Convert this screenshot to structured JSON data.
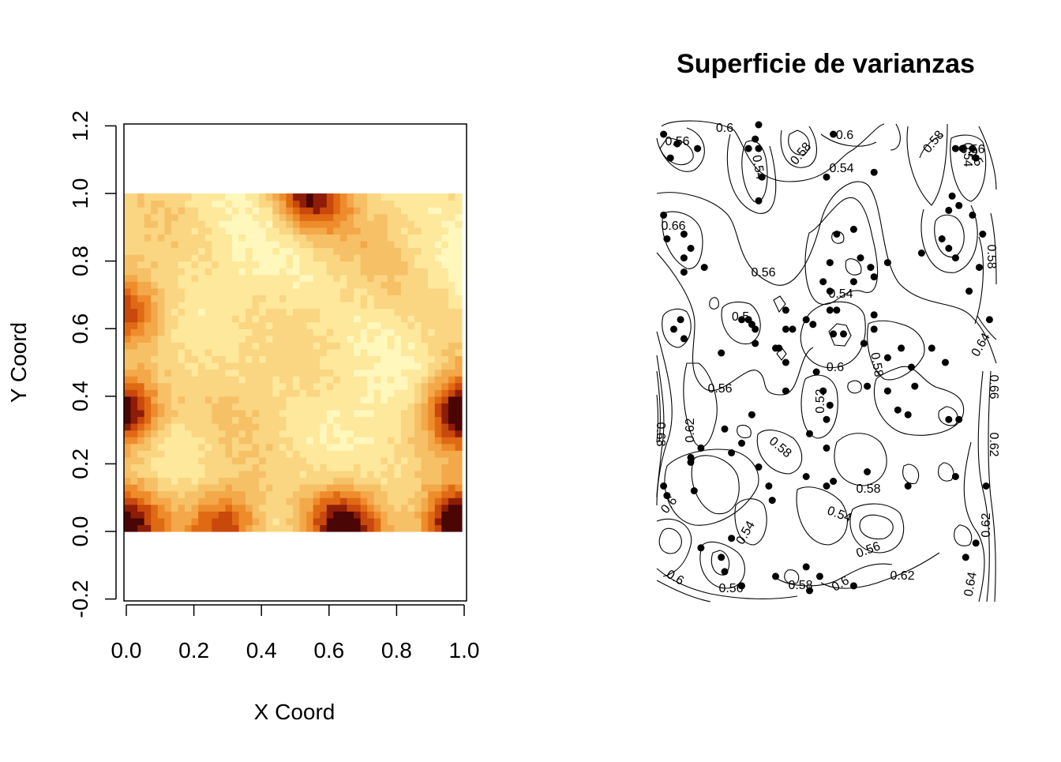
{
  "chart_data": [
    {
      "type": "heatmap",
      "xlabel": "X Coord",
      "ylabel": "Y Coord",
      "xlim": [
        0.0,
        1.0
      ],
      "ylim": [
        -0.2,
        1.2
      ],
      "x_ticks": [
        "0.0",
        "0.2",
        "0.4",
        "0.6",
        "0.8",
        "1.0"
      ],
      "y_ticks": [
        "-0.2",
        "0.0",
        "0.2",
        "0.4",
        "0.6",
        "0.8",
        "1.0",
        "1.2"
      ],
      "color_scale": [
        "#fff7bc",
        "#fde89c",
        "#fad582",
        "#f6c066",
        "#f3a84a",
        "#ee8c2c",
        "#e06a14",
        "#c9480c",
        "#8e1d08",
        "#4a0505"
      ],
      "hot_spots": [
        {
          "x": 0.0,
          "y": 0.36,
          "level": 0.95
        },
        {
          "x": 1.0,
          "y": 0.02,
          "level": 1.0
        },
        {
          "x": 1.0,
          "y": 0.35,
          "level": 0.85
        },
        {
          "x": 0.55,
          "y": 1.0,
          "level": 0.7
        },
        {
          "x": 0.3,
          "y": 0.02,
          "level": 0.7
        },
        {
          "x": 0.65,
          "y": 0.02,
          "level": 0.75
        },
        {
          "x": 0.0,
          "y": 0.02,
          "level": 0.7
        },
        {
          "x": 0.0,
          "y": 0.65,
          "level": 0.5
        }
      ],
      "grid": false
    },
    {
      "type": "scatter",
      "title": "Superficie de varianzas",
      "contour_labels": [
        "0.6",
        "0.56",
        "0.6",
        "0.58",
        "0.58",
        "0.54",
        "0.5",
        "0.54",
        "0.56",
        "0.56",
        "0.58",
        "0.66",
        "0.5",
        "0.54",
        "0.58",
        "0.6",
        "0.64",
        "0.54",
        "0.56",
        "0.52",
        "0.62",
        "0.66",
        "0.68",
        "0.58",
        "0.62",
        "0.58",
        "0.6",
        "0.54",
        "0.54",
        "0.56",
        "0.62",
        "0.6",
        "0.56",
        "0.58",
        "0.6",
        "0.62",
        "0.64"
      ],
      "points": [
        [
          0.02,
          0.98
        ],
        [
          0.06,
          0.96
        ],
        [
          0.12,
          0.95
        ],
        [
          0.04,
          0.93
        ],
        [
          0.3,
          1.0
        ],
        [
          0.29,
          0.97
        ],
        [
          0.3,
          0.95
        ],
        [
          0.27,
          0.95
        ],
        [
          0.52,
          0.98
        ],
        [
          0.88,
          0.95
        ],
        [
          0.9,
          0.95
        ],
        [
          0.93,
          0.95
        ],
        [
          0.94,
          0.93
        ],
        [
          0.31,
          0.89
        ],
        [
          0.3,
          0.84
        ],
        [
          0.64,
          0.9
        ],
        [
          0.5,
          0.89
        ],
        [
          0.87,
          0.85
        ],
        [
          0.89,
          0.83
        ],
        [
          0.93,
          0.81
        ],
        [
          0.02,
          0.81
        ],
        [
          0.03,
          0.76
        ],
        [
          0.08,
          0.77
        ],
        [
          0.1,
          0.74
        ],
        [
          0.08,
          0.72
        ],
        [
          0.14,
          0.7
        ],
        [
          0.08,
          0.69
        ],
        [
          0.58,
          0.78
        ],
        [
          0.63,
          0.7
        ],
        [
          0.6,
          0.72
        ],
        [
          0.53,
          0.77
        ],
        [
          0.51,
          0.71
        ],
        [
          0.51,
          0.65
        ],
        [
          0.49,
          0.67
        ],
        [
          0.64,
          0.68
        ],
        [
          0.68,
          0.71
        ],
        [
          0.78,
          0.73
        ],
        [
          0.86,
          0.82
        ],
        [
          0.84,
          0.76
        ],
        [
          0.86,
          0.74
        ],
        [
          0.58,
          0.67
        ],
        [
          0.51,
          0.61
        ],
        [
          0.64,
          0.6
        ],
        [
          0.64,
          0.57
        ],
        [
          0.53,
          0.61
        ],
        [
          0.52,
          0.56
        ],
        [
          0.96,
          0.77
        ],
        [
          0.95,
          0.7
        ],
        [
          0.88,
          0.72
        ],
        [
          0.92,
          0.65
        ],
        [
          0.38,
          0.61
        ],
        [
          0.4,
          0.57
        ],
        [
          0.46,
          0.58
        ],
        [
          0.38,
          0.57
        ],
        [
          0.38,
          0.5
        ],
        [
          0.98,
          0.59
        ],
        [
          0.07,
          0.59
        ],
        [
          0.05,
          0.57
        ],
        [
          0.08,
          0.55
        ],
        [
          0.27,
          0.59
        ],
        [
          0.28,
          0.58
        ],
        [
          0.25,
          0.59
        ],
        [
          0.29,
          0.54
        ],
        [
          0.35,
          0.53
        ],
        [
          0.55,
          0.56
        ],
        [
          0.44,
          0.59
        ],
        [
          0.61,
          0.54
        ],
        [
          0.36,
          0.53
        ],
        [
          0.29,
          0.57
        ],
        [
          0.19,
          0.52
        ],
        [
          0.38,
          0.44
        ],
        [
          0.47,
          0.48
        ],
        [
          0.72,
          0.53
        ],
        [
          0.75,
          0.49
        ],
        [
          0.76,
          0.45
        ],
        [
          0.81,
          0.53
        ],
        [
          0.85,
          0.5
        ],
        [
          0.49,
          0.44
        ],
        [
          0.51,
          0.41
        ],
        [
          0.5,
          0.38
        ],
        [
          0.62,
          0.45
        ],
        [
          0.68,
          0.51
        ],
        [
          0.86,
          0.38
        ],
        [
          0.89,
          0.38
        ],
        [
          0.68,
          0.44
        ],
        [
          0.71,
          0.4
        ],
        [
          0.74,
          0.39
        ],
        [
          0.45,
          0.35
        ],
        [
          0.2,
          0.36
        ],
        [
          0.1,
          0.29
        ],
        [
          0.33,
          0.24
        ],
        [
          0.03,
          0.22
        ],
        [
          0.02,
          0.24
        ],
        [
          0.13,
          0.32
        ],
        [
          0.1,
          0.3
        ],
        [
          0.11,
          0.23
        ],
        [
          0.3,
          0.28
        ],
        [
          0.34,
          0.21
        ],
        [
          0.44,
          0.26
        ],
        [
          0.5,
          0.24
        ],
        [
          0.52,
          0.25
        ],
        [
          0.62,
          0.27
        ],
        [
          0.74,
          0.24
        ],
        [
          0.97,
          0.24
        ],
        [
          0.88,
          0.26
        ],
        [
          0.22,
          0.31
        ],
        [
          0.25,
          0.33
        ],
        [
          0.28,
          0.39
        ],
        [
          0.5,
          0.32
        ],
        [
          0.22,
          0.13
        ],
        [
          0.13,
          0.11
        ],
        [
          0.19,
          0.09
        ],
        [
          0.2,
          0.06
        ],
        [
          0.44,
          0.07
        ],
        [
          0.48,
          0.05
        ],
        [
          0.58,
          0.03
        ],
        [
          0.91,
          0.09
        ],
        [
          0.94,
          0.12
        ],
        [
          0.25,
          0.03
        ],
        [
          0.35,
          0.05
        ],
        [
          0.45,
          0.02
        ]
      ]
    }
  ]
}
